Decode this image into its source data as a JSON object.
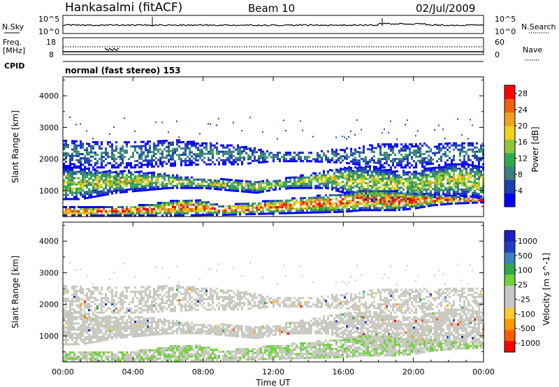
{
  "header": {
    "station": "Hankasalmi (fitACF)",
    "beam": "Beam 10",
    "date": "02/Jul/2009"
  },
  "nsky_panel": {
    "left_label": "N.Sky",
    "right_label": "N.Search",
    "left_ticks": [
      "10^5",
      "10^0"
    ],
    "right_ticks": [
      "10^5",
      "10^0"
    ]
  },
  "freq_panel": {
    "left_label_1": "Freq.",
    "left_label_2": "[MHz]",
    "right_label": "Nave",
    "left_ticks": [
      "18",
      "8"
    ],
    "right_ticks": [
      "60",
      "0"
    ]
  },
  "cpid": {
    "label": "CPID",
    "text": "normal (fast stereo) 153"
  },
  "colors": {
    "power_scale": [
      "#0000ff",
      "#1e3fb4",
      "#3b7f7f",
      "#2fa84f",
      "#8fc73a",
      "#f0d21c",
      "#f0a020",
      "#f06010",
      "#ff0000"
    ],
    "velocity_scale": [
      "#ff0000",
      "#ff5a00",
      "#ff9a00",
      "#ffcc33",
      "#c8c8c8",
      "#c8c8c8",
      "#6fd23c",
      "#2fa84f",
      "#3b7fbf",
      "#1f3fbf",
      "#2020c0"
    ],
    "ground_scatter": "#c8c8c0"
  },
  "chart_data": [
    {
      "type": "heatmap",
      "title": "",
      "xlabel": "Time UT",
      "ylabel": "Slant Range [km]",
      "xlim": [
        "00:00",
        "24:00"
      ],
      "ylim": [
        180,
        4600
      ],
      "x_ticks": [
        "00:00",
        "04:00",
        "08:00",
        "12:00",
        "16:00",
        "20:00",
        "00:00"
      ],
      "y_ticks": [
        1000,
        2000,
        3000,
        4000
      ],
      "colorbar": {
        "label": "Power [dB]",
        "ticks": [
          4,
          8,
          12,
          16,
          20,
          24,
          28
        ],
        "range": [
          0,
          30
        ]
      },
      "bands": [
        {
          "name": "main",
          "x": [
            0,
            1,
            2,
            3,
            4,
            5,
            6,
            7,
            8,
            9,
            10,
            11,
            12,
            13,
            14,
            15,
            16,
            17,
            18,
            19,
            20,
            21,
            22,
            23,
            24
          ],
          "lower_km": [
            700,
            700,
            800,
            900,
            950,
            1000,
            1050,
            1050,
            1050,
            1000,
            950,
            900,
            1000,
            1050,
            1050,
            1050,
            900,
            700,
            600,
            650,
            700,
            750,
            800,
            800,
            700
          ],
          "upper_km": [
            1700,
            1700,
            1650,
            1600,
            1600,
            1550,
            1500,
            1400,
            1350,
            1350,
            1300,
            1300,
            1300,
            1400,
            1500,
            1600,
            1700,
            1750,
            1700,
            1600,
            1600,
            1700,
            1800,
            1800,
            1700
          ],
          "peak_db": 18
        },
        {
          "name": "upper",
          "x": [
            0,
            2,
            4,
            6,
            8,
            10,
            12,
            14,
            16,
            18,
            20,
            22,
            24
          ],
          "lower_km": [
            1750,
            1700,
            1700,
            1750,
            1800,
            1800,
            1900,
            1900,
            1850,
            1700,
            1700,
            1800,
            1800
          ],
          "upper_km": [
            2600,
            2550,
            2550,
            2600,
            2500,
            2400,
            2200,
            2200,
            2300,
            2450,
            2450,
            2500,
            2500
          ],
          "peak_db": 10
        },
        {
          "name": "near",
          "x": [
            0,
            2,
            4,
            5,
            6,
            7,
            8,
            9,
            16,
            17,
            18,
            19,
            20,
            21,
            22,
            24
          ],
          "lower_km": [
            180,
            180,
            180,
            180,
            180,
            180,
            200,
            200,
            300,
            350,
            350,
            350,
            400,
            500,
            550,
            600
          ],
          "upper_km": [
            450,
            450,
            500,
            550,
            650,
            700,
            650,
            500,
            900,
            1000,
            1000,
            950,
            900,
            850,
            800,
            750
          ],
          "peak_db": 28
        }
      ]
    },
    {
      "type": "heatmap",
      "title": "",
      "xlabel": "Time UT",
      "ylabel": "Slant Range [km]",
      "xlim": [
        "00:00",
        "24:00"
      ],
      "ylim": [
        180,
        4600
      ],
      "x_ticks": [
        "00:00",
        "04:00",
        "08:00",
        "12:00",
        "16:00",
        "20:00",
        "00:00"
      ],
      "y_ticks": [
        1000,
        2000,
        3000,
        4000
      ],
      "colorbar": {
        "label": "Velocity [m s^-1]",
        "ticks": [
          1000,
          500,
          100,
          25,
          -25,
          -100,
          -500,
          -1000
        ]
      },
      "dominant_value": "ground scatter (gray)"
    }
  ]
}
